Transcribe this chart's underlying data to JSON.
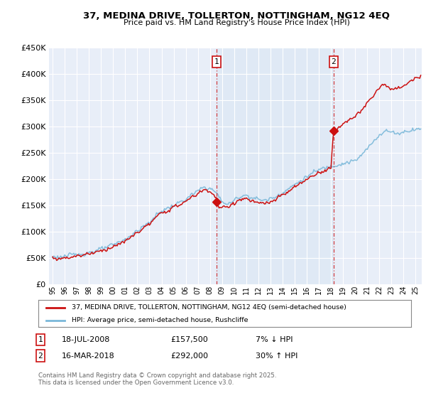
{
  "title": "37, MEDINA DRIVE, TOLLERTON, NOTTINGHAM, NG12 4EQ",
  "subtitle": "Price paid vs. HM Land Registry's House Price Index (HPI)",
  "legend_line1": "37, MEDINA DRIVE, TOLLERTON, NOTTINGHAM, NG12 4EQ (semi-detached house)",
  "legend_line2": "HPI: Average price, semi-detached house, Rushcliffe",
  "transaction1_date": "18-JUL-2008",
  "transaction1_price": "£157,500",
  "transaction1_hpi": "7% ↓ HPI",
  "transaction2_date": "16-MAR-2018",
  "transaction2_price": "£292,000",
  "transaction2_hpi": "30% ↑ HPI",
  "footer": "Contains HM Land Registry data © Crown copyright and database right 2025.\nThis data is licensed under the Open Government Licence v3.0.",
  "hpi_color": "#7ab8d9",
  "price_color": "#cc1111",
  "marker1_x": 2008.54,
  "marker1_y": 157500,
  "marker2_x": 2018.21,
  "marker2_y": 292000,
  "ylim": [
    0,
    450000
  ],
  "xlim_start": 1994.7,
  "xlim_end": 2025.5,
  "background_color": "#dce8f5",
  "plot_bg_color": "#e8eef8"
}
